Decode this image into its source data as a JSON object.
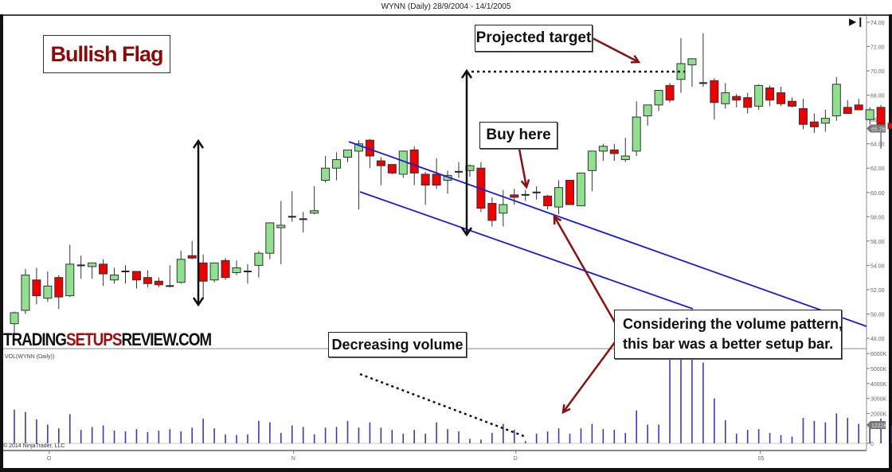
{
  "header": {
    "title": "WYNN (Daily)  28/9/2004 - 14/1/2005"
  },
  "annotations": {
    "chart_title": "Bullish Flag",
    "projected_target": "Projected target",
    "buy_here": "Buy here",
    "decreasing_volume": "Decreasing volume",
    "volume_note_line1": "Considering the volume pattern,",
    "volume_note_line2": "this bar was a better setup bar.",
    "brand_part1": "TRADING",
    "brand_part2": "SETUPS",
    "brand_part3": "REVIEW.COM"
  },
  "panels": {
    "volume_label": "VOL(WYNN (Daily))",
    "copyright": "© 2014 NinjaTrader, LLC",
    "price_marker": "65.26",
    "volume_marker": "1222K"
  },
  "colors": {
    "up": "#90e090",
    "down": "#ee0000",
    "channel": "#1a1ae0",
    "arrow_red": "#8b1010",
    "volume_bar": "#3a3ab8",
    "title_red": "#8b0a0a"
  },
  "chart_data": {
    "type": "candlestick",
    "title": "WYNN (Daily)  28/9/2004 - 14/1/2005",
    "xlabel": "",
    "ylabel": "",
    "ylim": [
      48,
      74
    ],
    "y_ticks": [
      "74.00",
      "72.00",
      "70.00",
      "68.00",
      "66.00",
      "64.00",
      "62.00",
      "60.00",
      "58.00",
      "56.00",
      "54.00",
      "52.00",
      "50.00",
      "48.00"
    ],
    "volume_ticks": [
      "6000K",
      "5000K",
      "4000K",
      "3000K",
      "2000K",
      "0"
    ],
    "x_ticks": [
      {
        "label": "O",
        "index": 3
      },
      {
        "label": "N",
        "index": 25
      },
      {
        "label": "D",
        "index": 45
      },
      {
        "label": "05",
        "index": 67
      }
    ],
    "last_price": 65.26,
    "last_volume": "1222K",
    "candles": [
      {
        "o": 49.2,
        "h": 50.2,
        "l": 48.4,
        "c": 50.1
      },
      {
        "o": 50.3,
        "h": 53.7,
        "l": 50.0,
        "c": 53.2
      },
      {
        "o": 52.8,
        "h": 53.8,
        "l": 50.8,
        "c": 51.5
      },
      {
        "o": 51.3,
        "h": 53.5,
        "l": 51.0,
        "c": 52.3
      },
      {
        "o": 53.0,
        "h": 53.2,
        "l": 50.4,
        "c": 51.4
      },
      {
        "o": 51.5,
        "h": 55.7,
        "l": 51.4,
        "c": 54.1
      },
      {
        "o": 54.0,
        "h": 54.8,
        "l": 52.9,
        "c": 54.0
      },
      {
        "o": 53.9,
        "h": 54.0,
        "l": 52.9,
        "c": 54.2
      },
      {
        "o": 54.1,
        "h": 54.5,
        "l": 52.3,
        "c": 53.3
      },
      {
        "o": 52.8,
        "h": 53.8,
        "l": 52.5,
        "c": 53.2
      },
      {
        "o": 53.5,
        "h": 54.0,
        "l": 52.5,
        "c": 53.5
      },
      {
        "o": 53.5,
        "h": 53.5,
        "l": 52.1,
        "c": 52.8
      },
      {
        "o": 53.0,
        "h": 53.6,
        "l": 52.2,
        "c": 52.5
      },
      {
        "o": 52.7,
        "h": 53.0,
        "l": 52.2,
        "c": 52.4
      },
      {
        "o": 52.3,
        "h": 54.0,
        "l": 52.2,
        "c": 52.3
      },
      {
        "o": 52.6,
        "h": 55.2,
        "l": 52.5,
        "c": 54.5
      },
      {
        "o": 54.8,
        "h": 56.0,
        "l": 54.5,
        "c": 54.6
      },
      {
        "o": 54.2,
        "h": 54.9,
        "l": 51.2,
        "c": 52.7
      },
      {
        "o": 52.8,
        "h": 54.1,
        "l": 52.6,
        "c": 54.2
      },
      {
        "o": 54.4,
        "h": 54.6,
        "l": 52.8,
        "c": 53.0
      },
      {
        "o": 53.4,
        "h": 54.4,
        "l": 53.2,
        "c": 53.8
      },
      {
        "o": 53.4,
        "h": 54.1,
        "l": 52.5,
        "c": 53.5
      },
      {
        "o": 54.0,
        "h": 55.2,
        "l": 53.0,
        "c": 55.0
      },
      {
        "o": 55.0,
        "h": 57.4,
        "l": 54.5,
        "c": 57.5
      },
      {
        "o": 57.1,
        "h": 59.3,
        "l": 54.1,
        "c": 57.3
      },
      {
        "o": 57.9,
        "h": 60.1,
        "l": 57.6,
        "c": 58.0
      },
      {
        "o": 57.8,
        "h": 58.4,
        "l": 56.7,
        "c": 57.7
      },
      {
        "o": 58.3,
        "h": 60.5,
        "l": 58.2,
        "c": 58.5
      },
      {
        "o": 61.0,
        "h": 63.0,
        "l": 60.8,
        "c": 62.0
      },
      {
        "o": 62.0,
        "h": 63.3,
        "l": 61.0,
        "c": 62.7
      },
      {
        "o": 62.9,
        "h": 63.5,
        "l": 62.5,
        "c": 63.5
      },
      {
        "o": 63.4,
        "h": 64.3,
        "l": 58.6,
        "c": 64.0
      },
      {
        "o": 64.3,
        "h": 64.4,
        "l": 62.0,
        "c": 63.0
      },
      {
        "o": 62.6,
        "h": 62.9,
        "l": 60.6,
        "c": 62.2
      },
      {
        "o": 62.3,
        "h": 62.0,
        "l": 61.5,
        "c": 61.6
      },
      {
        "o": 61.5,
        "h": 63.0,
        "l": 61.2,
        "c": 63.4
      },
      {
        "o": 63.5,
        "h": 63.8,
        "l": 60.6,
        "c": 61.6
      },
      {
        "o": 61.5,
        "h": 61.7,
        "l": 59.0,
        "c": 60.6
      },
      {
        "o": 61.5,
        "h": 62.8,
        "l": 60.3,
        "c": 60.6
      },
      {
        "o": 61.0,
        "h": 61.8,
        "l": 59.9,
        "c": 61.4
      },
      {
        "o": 61.6,
        "h": 62.5,
        "l": 61.2,
        "c": 61.7
      },
      {
        "o": 61.8,
        "h": 62.3,
        "l": 61.3,
        "c": 62.2
      },
      {
        "o": 62.0,
        "h": 62.5,
        "l": 58.4,
        "c": 58.7
      },
      {
        "o": 59.1,
        "h": 59.6,
        "l": 57.2,
        "c": 57.7
      },
      {
        "o": 58.3,
        "h": 60.2,
        "l": 57.2,
        "c": 59.0
      },
      {
        "o": 59.8,
        "h": 60.3,
        "l": 59.0,
        "c": 59.6
      },
      {
        "o": 59.8,
        "h": 60.2,
        "l": 59.3,
        "c": 59.8
      },
      {
        "o": 59.9,
        "h": 60.5,
        "l": 59.4,
        "c": 60.0
      },
      {
        "o": 59.7,
        "h": 59.8,
        "l": 58.6,
        "c": 58.9
      },
      {
        "o": 58.8,
        "h": 61.0,
        "l": 58.2,
        "c": 60.4
      },
      {
        "o": 61.0,
        "h": 61.0,
        "l": 59.2,
        "c": 59.0
      },
      {
        "o": 58.9,
        "h": 61.6,
        "l": 58.9,
        "c": 61.6
      },
      {
        "o": 61.8,
        "h": 62.4,
        "l": 60.1,
        "c": 63.4
      },
      {
        "o": 63.4,
        "h": 64.0,
        "l": 62.6,
        "c": 63.8
      },
      {
        "o": 63.5,
        "h": 64.0,
        "l": 62.6,
        "c": 63.2
      },
      {
        "o": 62.7,
        "h": 64.5,
        "l": 62.5,
        "c": 63.0
      },
      {
        "o": 63.4,
        "h": 67.5,
        "l": 63.0,
        "c": 66.2
      },
      {
        "o": 66.3,
        "h": 67.0,
        "l": 65.5,
        "c": 67.2
      },
      {
        "o": 67.2,
        "h": 67.9,
        "l": 66.7,
        "c": 68.4
      },
      {
        "o": 68.8,
        "h": 69.0,
        "l": 67.4,
        "c": 67.6
      },
      {
        "o": 69.3,
        "h": 72.7,
        "l": 68.2,
        "c": 70.6
      },
      {
        "o": 70.5,
        "h": 70.9,
        "l": 68.7,
        "c": 71.0
      },
      {
        "o": 69.0,
        "h": 73.1,
        "l": 68.7,
        "c": 69.0
      },
      {
        "o": 69.2,
        "h": 69.4,
        "l": 66.0,
        "c": 67.4
      },
      {
        "o": 67.3,
        "h": 69.0,
        "l": 66.9,
        "c": 68.2
      },
      {
        "o": 67.9,
        "h": 68.1,
        "l": 67.0,
        "c": 67.6
      },
      {
        "o": 67.8,
        "h": 68.2,
        "l": 66.5,
        "c": 67.0
      },
      {
        "o": 67.1,
        "h": 68.9,
        "l": 66.8,
        "c": 68.8
      },
      {
        "o": 68.6,
        "h": 68.8,
        "l": 67.1,
        "c": 67.6
      },
      {
        "o": 68.2,
        "h": 68.7,
        "l": 67.1,
        "c": 67.3
      },
      {
        "o": 67.5,
        "h": 67.8,
        "l": 67.0,
        "c": 67.1
      },
      {
        "o": 66.9,
        "h": 67.7,
        "l": 65.2,
        "c": 65.6
      },
      {
        "o": 65.8,
        "h": 66.5,
        "l": 64.9,
        "c": 65.4
      },
      {
        "o": 65.7,
        "h": 66.8,
        "l": 65.0,
        "c": 66.1
      },
      {
        "o": 66.3,
        "h": 69.5,
        "l": 65.9,
        "c": 68.9
      },
      {
        "o": 67.0,
        "h": 67.6,
        "l": 66.5,
        "c": 66.5
      },
      {
        "o": 67.2,
        "h": 67.7,
        "l": 66.8,
        "c": 66.8
      },
      {
        "o": 66.0,
        "h": 67.0,
        "l": 65.6,
        "c": 66.8
      },
      {
        "o": 67.0,
        "h": 67.2,
        "l": 63.6,
        "c": 65.6
      },
      {
        "o": 65.7,
        "h": 66.2,
        "l": 65.2,
        "c": 65.26
      }
    ],
    "volume_k": [
      2250,
      2100,
      1600,
      1250,
      1000,
      1950,
      900,
      1100,
      1200,
      850,
      800,
      950,
      750,
      850,
      950,
      800,
      1050,
      1650,
      1000,
      600,
      550,
      600,
      1500,
      1400,
      700,
      1200,
      1100,
      600,
      1050,
      1100,
      1500,
      1050,
      1400,
      1050,
      900,
      650,
      900,
      650,
      1400,
      950,
      800,
      300,
      250,
      700,
      1300,
      900,
      150,
      650,
      800,
      1000,
      650,
      1000,
      1300,
      950,
      900,
      700,
      2200,
      1250,
      1250,
      5750,
      6500,
      6600,
      5400,
      3000,
      1550,
      650,
      900,
      950,
      700,
      550,
      450,
      1700,
      1500,
      1400,
      2000,
      1700,
      1300,
      1400,
      1650,
      1200
    ],
    "annotations": [
      {
        "type": "arrow",
        "label": "flagpole",
        "from_price": 64.2,
        "to_price": 50.8
      },
      {
        "type": "arrow",
        "label": "projected move",
        "from_price": 70.0,
        "to_price": 56.8
      },
      {
        "type": "dotted_line",
        "label": "projected target",
        "price": 70.0
      },
      {
        "type": "channel",
        "upper": [
          [
            64.2
          ],
          [
            48.6
          ]
        ],
        "lower": [
          [
            60.1
          ],
          [
            40
          ]
        ]
      },
      {
        "type": "dotted_line",
        "label": "decreasing volume"
      }
    ]
  }
}
